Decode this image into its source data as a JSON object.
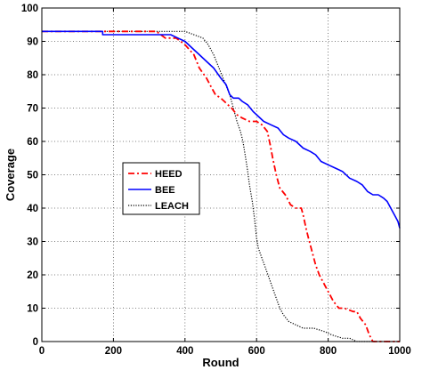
{
  "chart_data": {
    "type": "line",
    "title": "",
    "xlabel": "Round",
    "ylabel": "Coverage",
    "xlim": [
      0,
      1000
    ],
    "ylim": [
      0,
      100
    ],
    "xticks": [
      0,
      200,
      400,
      600,
      800,
      1000
    ],
    "yticks": [
      0,
      10,
      20,
      30,
      40,
      50,
      60,
      70,
      80,
      90,
      100
    ],
    "grid": true,
    "grid_style": "dotted",
    "legend_position": "center-left",
    "series": [
      {
        "name": "HEED",
        "color": "#ff0000",
        "line_style": "dash-dot",
        "points": [
          [
            0,
            93
          ],
          [
            320,
            93
          ],
          [
            345,
            91
          ],
          [
            375,
            91
          ],
          [
            400,
            89
          ],
          [
            425,
            86
          ],
          [
            440,
            82
          ],
          [
            460,
            79
          ],
          [
            470,
            77
          ],
          [
            485,
            74
          ],
          [
            500,
            73
          ],
          [
            510,
            72
          ],
          [
            520,
            71
          ],
          [
            530,
            70
          ],
          [
            545,
            68
          ],
          [
            560,
            67
          ],
          [
            580,
            66
          ],
          [
            600,
            66
          ],
          [
            615,
            65
          ],
          [
            630,
            63
          ],
          [
            638,
            59
          ],
          [
            645,
            55
          ],
          [
            655,
            50
          ],
          [
            665,
            46
          ],
          [
            680,
            44
          ],
          [
            695,
            41
          ],
          [
            710,
            40
          ],
          [
            725,
            40
          ],
          [
            730,
            38
          ],
          [
            738,
            34
          ],
          [
            745,
            31
          ],
          [
            755,
            27
          ],
          [
            765,
            23
          ],
          [
            775,
            20
          ],
          [
            790,
            17
          ],
          [
            800,
            15
          ],
          [
            815,
            12
          ],
          [
            830,
            10
          ],
          [
            845,
            10
          ],
          [
            870,
            9
          ],
          [
            880,
            9
          ],
          [
            890,
            7
          ],
          [
            905,
            5
          ],
          [
            915,
            2
          ],
          [
            925,
            0
          ],
          [
            1000,
            0
          ]
        ]
      },
      {
        "name": "BEE",
        "color": "#0000ff",
        "line_style": "solid",
        "points": [
          [
            0,
            93
          ],
          [
            170,
            93
          ],
          [
            170,
            92
          ],
          [
            360,
            92
          ],
          [
            380,
            91
          ],
          [
            400,
            90
          ],
          [
            420,
            88
          ],
          [
            440,
            86
          ],
          [
            460,
            84
          ],
          [
            480,
            82
          ],
          [
            500,
            79
          ],
          [
            515,
            77
          ],
          [
            525,
            74
          ],
          [
            535,
            73
          ],
          [
            550,
            73
          ],
          [
            560,
            72
          ],
          [
            575,
            71
          ],
          [
            590,
            69
          ],
          [
            600,
            68
          ],
          [
            620,
            66
          ],
          [
            640,
            65
          ],
          [
            660,
            64
          ],
          [
            675,
            62
          ],
          [
            690,
            61
          ],
          [
            710,
            60
          ],
          [
            730,
            58
          ],
          [
            750,
            57
          ],
          [
            765,
            56
          ],
          [
            780,
            54
          ],
          [
            800,
            53
          ],
          [
            820,
            52
          ],
          [
            840,
            51
          ],
          [
            860,
            49
          ],
          [
            880,
            48
          ],
          [
            895,
            47
          ],
          [
            910,
            45
          ],
          [
            925,
            44
          ],
          [
            940,
            44
          ],
          [
            955,
            43
          ],
          [
            965,
            42
          ],
          [
            975,
            40
          ],
          [
            985,
            38
          ],
          [
            995,
            36
          ],
          [
            1000,
            34
          ]
        ]
      },
      {
        "name": "LEACH",
        "color": "#000000",
        "line_style": "dotted",
        "points": [
          [
            0,
            93
          ],
          [
            400,
            93
          ],
          [
            425,
            92
          ],
          [
            450,
            91
          ],
          [
            465,
            89
          ],
          [
            480,
            86
          ],
          [
            495,
            82
          ],
          [
            510,
            78
          ],
          [
            525,
            74
          ],
          [
            535,
            70
          ],
          [
            545,
            66
          ],
          [
            555,
            63
          ],
          [
            562,
            60
          ],
          [
            568,
            56
          ],
          [
            574,
            52
          ],
          [
            580,
            47
          ],
          [
            588,
            42
          ],
          [
            594,
            37
          ],
          [
            600,
            31
          ],
          [
            605,
            28
          ],
          [
            615,
            25
          ],
          [
            625,
            22
          ],
          [
            635,
            19
          ],
          [
            645,
            16
          ],
          [
            655,
            13
          ],
          [
            665,
            10
          ],
          [
            675,
            8
          ],
          [
            690,
            6
          ],
          [
            710,
            5
          ],
          [
            730,
            4
          ],
          [
            760,
            4
          ],
          [
            790,
            3
          ],
          [
            810,
            2
          ],
          [
            840,
            1
          ],
          [
            860,
            1
          ],
          [
            880,
            0
          ],
          [
            1000,
            0
          ]
        ]
      }
    ]
  }
}
